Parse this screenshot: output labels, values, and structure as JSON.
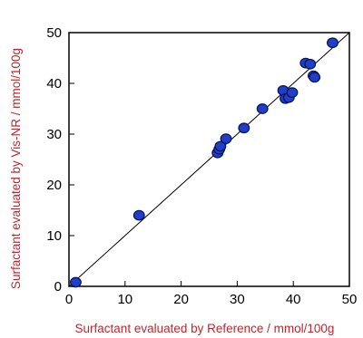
{
  "chart_data": {
    "type": "scatter",
    "title": "",
    "xlabel": "Surfactant evaluated by Reference / mmol/100g",
    "ylabel": "Surfactant evaluated by Vis-NR / mmol/100g",
    "xlim": [
      0,
      50
    ],
    "ylim": [
      0,
      50
    ],
    "xticks": [
      "0",
      "10",
      "20",
      "30",
      "40",
      "50"
    ],
    "yticks": [
      "0",
      "10",
      "20",
      "30",
      "40",
      "50"
    ],
    "grid": false,
    "legend": "none",
    "reference_line": "y = x",
    "colors": {
      "axis_title": "#c0272d",
      "point_fill": "#1f3fc8",
      "point_stroke": "#0a1560",
      "line": "#000000"
    },
    "points": [
      {
        "x": 1.2,
        "y": 0.8
      },
      {
        "x": 12.5,
        "y": 14.0
      },
      {
        "x": 26.5,
        "y": 26.3
      },
      {
        "x": 26.8,
        "y": 27.0
      },
      {
        "x": 27.0,
        "y": 27.6
      },
      {
        "x": 28.0,
        "y": 29.1
      },
      {
        "x": 31.2,
        "y": 31.2
      },
      {
        "x": 34.5,
        "y": 35.0
      },
      {
        "x": 38.2,
        "y": 38.6
      },
      {
        "x": 38.6,
        "y": 37.0
      },
      {
        "x": 39.2,
        "y": 37.2
      },
      {
        "x": 39.8,
        "y": 38.2
      },
      {
        "x": 42.2,
        "y": 44.0
      },
      {
        "x": 43.0,
        "y": 43.8
      },
      {
        "x": 43.6,
        "y": 41.5
      },
      {
        "x": 43.8,
        "y": 41.2
      },
      {
        "x": 47.0,
        "y": 48.0
      }
    ]
  }
}
